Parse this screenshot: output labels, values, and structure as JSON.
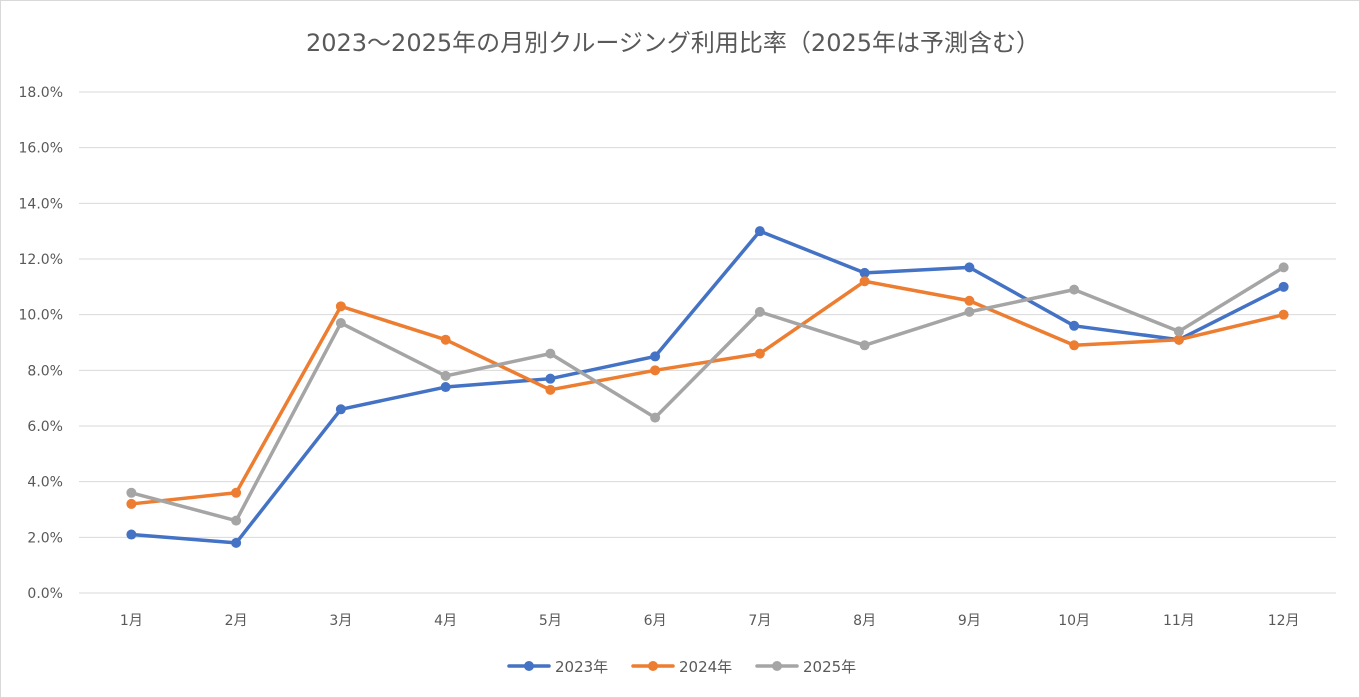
{
  "chart_data": {
    "type": "line",
    "title": "2023～2025年の月別クルージング利用比率（2025年は予測含む）",
    "xlabel": "",
    "ylabel": "",
    "categories": [
      "1月",
      "2月",
      "3月",
      "4月",
      "5月",
      "6月",
      "7月",
      "8月",
      "9月",
      "10月",
      "11月",
      "12月"
    ],
    "y_tick_labels": [
      "0.0%",
      "2.0%",
      "4.0%",
      "6.0%",
      "8.0%",
      "10.0%",
      "12.0%",
      "14.0%",
      "16.0%",
      "18.0%"
    ],
    "ylim": [
      0,
      18
    ],
    "y_unit": "%",
    "grid": true,
    "legend_position": "bottom",
    "series": [
      {
        "name": "2023年",
        "color": "#4472c4",
        "values": [
          2.1,
          1.8,
          6.6,
          7.4,
          7.7,
          8.5,
          13.0,
          11.5,
          11.7,
          9.6,
          9.1,
          11.0
        ]
      },
      {
        "name": "2024年",
        "color": "#ed7d31",
        "values": [
          3.2,
          3.6,
          10.3,
          9.1,
          7.3,
          8.0,
          8.6,
          11.2,
          10.5,
          8.9,
          9.1,
          10.0
        ]
      },
      {
        "name": "2025年",
        "color": "#a5a5a5",
        "values": [
          3.6,
          2.6,
          9.7,
          7.8,
          8.6,
          6.3,
          10.1,
          8.9,
          10.1,
          10.9,
          9.4,
          11.7
        ]
      }
    ]
  }
}
